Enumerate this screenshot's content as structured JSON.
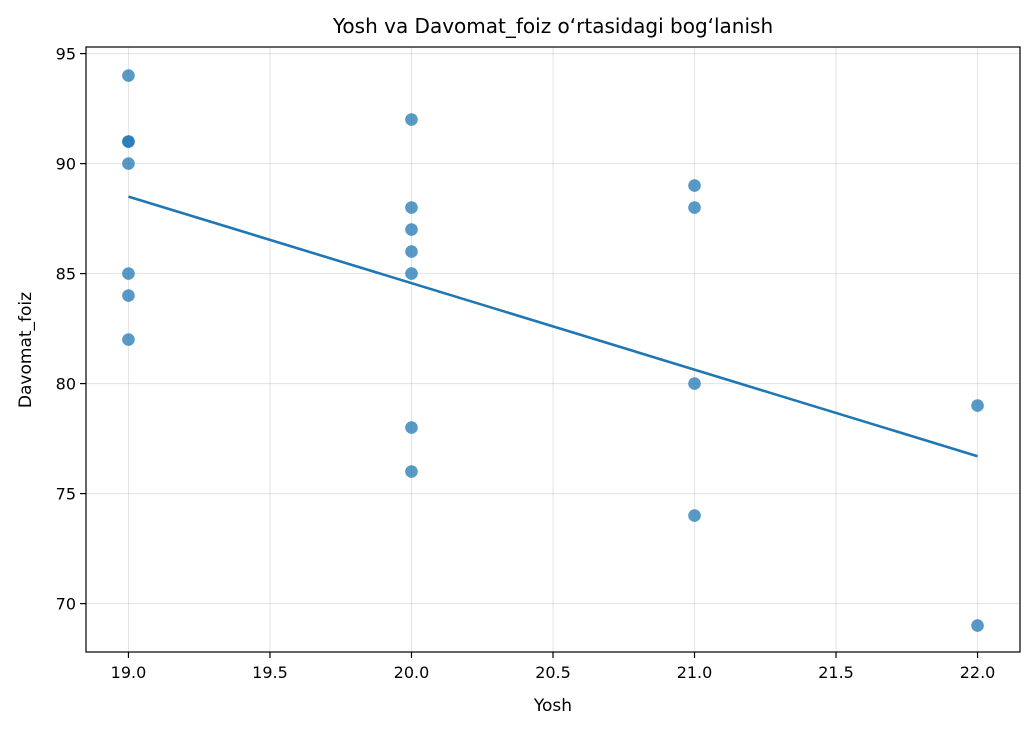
{
  "chart_data": {
    "type": "scatter",
    "title": "Yosh va Davomat_foiz o‘rtasidagi bog‘lanish",
    "xlabel": "Yosh",
    "ylabel": "Davomat_foiz",
    "xlim": [
      18.85,
      22.15
    ],
    "ylim": [
      67.8,
      95.3
    ],
    "xticks": [
      19.0,
      19.5,
      20.0,
      20.5,
      21.0,
      21.5,
      22.0
    ],
    "xtick_labels": [
      "19.0",
      "19.5",
      "20.0",
      "20.5",
      "21.0",
      "21.5",
      "22.0"
    ],
    "yticks": [
      70,
      75,
      80,
      85,
      90,
      95
    ],
    "ytick_labels": [
      "70",
      "75",
      "80",
      "85",
      "90",
      "95"
    ],
    "grid": true,
    "colors": {
      "points": "#1f77b4",
      "trend": "#1f77b4"
    },
    "points": [
      {
        "x": 19,
        "y": 94
      },
      {
        "x": 19,
        "y": 91
      },
      {
        "x": 19,
        "y": 91
      },
      {
        "x": 19,
        "y": 90
      },
      {
        "x": 19,
        "y": 85
      },
      {
        "x": 19,
        "y": 84
      },
      {
        "x": 19,
        "y": 82
      },
      {
        "x": 20,
        "y": 92
      },
      {
        "x": 20,
        "y": 88
      },
      {
        "x": 20,
        "y": 87
      },
      {
        "x": 20,
        "y": 86
      },
      {
        "x": 20,
        "y": 85
      },
      {
        "x": 20,
        "y": 78
      },
      {
        "x": 20,
        "y": 76
      },
      {
        "x": 21,
        "y": 89
      },
      {
        "x": 21,
        "y": 88
      },
      {
        "x": 21,
        "y": 80
      },
      {
        "x": 21,
        "y": 74
      },
      {
        "x": 22,
        "y": 79
      },
      {
        "x": 22,
        "y": 69
      }
    ],
    "trend_line": {
      "x": [
        19,
        22
      ],
      "y": [
        88.5,
        76.7
      ]
    }
  }
}
